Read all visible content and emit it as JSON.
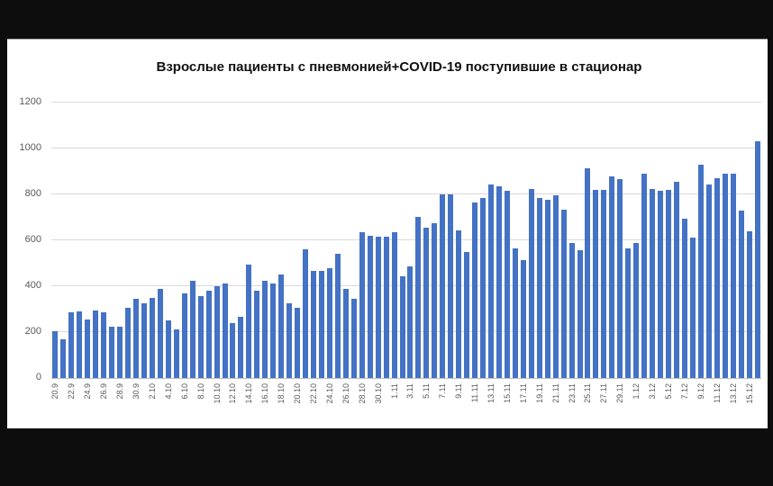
{
  "window": {
    "background_color": "#0d0d0d",
    "panel_background_color": "#ffffff"
  },
  "chart_data": {
    "type": "bar",
    "title": "Взрослые пациенты с  пневмонией+COVID-19 поступившие в стационар",
    "xlabel": "",
    "ylabel": "",
    "ylim": [
      0,
      1200
    ],
    "yticks": [
      0,
      200,
      400,
      600,
      800,
      1000,
      1200
    ],
    "grid": "horizontal",
    "legend": "none",
    "bar_color": "#4472c4",
    "gridline_color": "#d9d9d9",
    "axis_text_color": "#595959",
    "x_label_every": 2,
    "categories": [
      "20.9",
      "21.9",
      "22.9",
      "23.9",
      "24.9",
      "25.9",
      "26.9",
      "27.9",
      "28.9",
      "29.9",
      "30.9",
      "1.10",
      "2.10",
      "3.10",
      "4.10",
      "5.10",
      "6.10",
      "7.10",
      "8.10",
      "9.10",
      "10.10",
      "11.10",
      "12.10",
      "13.10",
      "14.10",
      "15.10",
      "16.10",
      "17.10",
      "18.10",
      "19.10",
      "20.10",
      "21.10",
      "22.10",
      "23.10",
      "24.10",
      "25.10",
      "26.10",
      "27.10",
      "28.10",
      "29.10",
      "30.10",
      "31.10",
      "1.11",
      "2.11",
      "3.11",
      "4.11",
      "5.11",
      "6.11",
      "7.11",
      "8.11",
      "9.11",
      "10.11",
      "11.11",
      "12.11",
      "13.11",
      "14.11",
      "15.11",
      "16.11",
      "17.11",
      "18.11",
      "19.11",
      "20.11",
      "21.11",
      "22.11",
      "23.11",
      "24.11",
      "25.11",
      "26.11",
      "27.11",
      "28.11",
      "29.11",
      "30.11",
      "1.12",
      "2.12",
      "3.12",
      "4.12",
      "5.12",
      "6.12",
      "7.12",
      "8.12",
      "9.12",
      "10.12",
      "11.12",
      "12.12",
      "13.12",
      "14.12",
      "15.12",
      "16.12"
    ],
    "values": [
      205,
      170,
      285,
      290,
      255,
      295,
      285,
      225,
      225,
      305,
      345,
      325,
      350,
      390,
      250,
      210,
      370,
      425,
      355,
      380,
      400,
      410,
      240,
      265,
      495,
      380,
      425,
      410,
      450,
      325,
      305,
      560,
      465,
      465,
      480,
      540,
      390,
      345,
      635,
      620,
      615,
      615,
      635,
      445,
      485,
      700,
      655,
      675,
      800,
      800,
      645,
      550,
      765,
      785,
      845,
      835,
      815,
      565,
      515,
      825,
      785,
      775,
      795,
      735,
      590,
      555,
      915,
      820,
      820,
      880,
      865,
      565,
      590,
      890,
      825,
      815,
      820,
      855,
      695,
      610,
      930,
      845,
      870,
      890,
      890,
      730,
      640,
      1030
    ]
  }
}
